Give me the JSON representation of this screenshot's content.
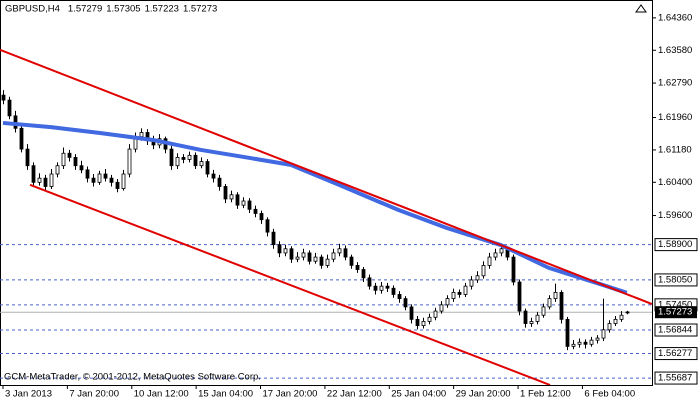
{
  "chart_data": {
    "type": "candlestick",
    "symbol": "GBPUSD,H4",
    "footer": "GCM-MetaTrader, © 2001-2012, MetaQuotes Software Corp.",
    "ylim": [
      1.5552,
      1.6479
    ],
    "xlim": [
      -0.5,
      108.2
    ],
    "yticks": [
      {
        "value": 1.6436,
        "label": "1.64360"
      },
      {
        "value": 1.6358,
        "label": "1.63580"
      },
      {
        "value": 1.6279,
        "label": "1.62790"
      },
      {
        "value": 1.6196,
        "label": "1.61960"
      },
      {
        "value": 1.6118,
        "label": "1.61180"
      },
      {
        "value": 1.604,
        "label": "1.60400"
      },
      {
        "value": 1.596,
        "label": "1.59600"
      }
    ],
    "levels": [
      {
        "value": 1.589,
        "label": "1.58900"
      },
      {
        "value": 1.5805,
        "label": "1.58050"
      },
      {
        "value": 1.5745,
        "label": "1.57450"
      },
      {
        "value": 1.56844,
        "label": "1.56844"
      },
      {
        "value": 1.56277,
        "label": "1.56277"
      },
      {
        "value": 1.55687,
        "label": "1.55687"
      }
    ],
    "level_color": "#4a63c8",
    "xticks": [
      {
        "value": 0,
        "label": "3 Jan 2013"
      },
      {
        "value": 10.73,
        "label": "7 Jan 20:00"
      },
      {
        "value": 21.47,
        "label": "10 Jan 12:00"
      },
      {
        "value": 32.2,
        "label": "15 Jan 04:00"
      },
      {
        "value": 42.93,
        "label": "17 Jan 20:00"
      },
      {
        "value": 53.67,
        "label": "22 Jan 12:00"
      },
      {
        "value": 64.4,
        "label": "25 Jan 04:00"
      },
      {
        "value": 75.13,
        "label": "29 Jan 20:00"
      },
      {
        "value": 85.87,
        "label": "1 Feb 12:00"
      },
      {
        "value": 96.6,
        "label": "6 Feb 04:00"
      }
    ],
    "up_color": "#ffffff",
    "down_color": "#000000",
    "candles": [
      [
        1.625,
        1.6262,
        1.6228,
        1.6238
      ],
      [
        1.6238,
        1.6246,
        1.6192,
        1.62
      ],
      [
        1.62,
        1.6212,
        1.616,
        1.617
      ],
      [
        1.617,
        1.6178,
        1.6112,
        1.612
      ],
      [
        1.612,
        1.6132,
        1.607,
        1.608
      ],
      [
        1.608,
        1.6088,
        1.603,
        1.604
      ],
      [
        1.604,
        1.6062,
        1.6032,
        1.605
      ],
      [
        1.605,
        1.6058,
        1.602,
        1.603
      ],
      [
        1.603,
        1.6072,
        1.6024,
        1.606
      ],
      [
        1.606,
        1.6088,
        1.6052,
        1.608
      ],
      [
        1.608,
        1.6124,
        1.6072,
        1.611
      ],
      [
        1.611,
        1.6118,
        1.609,
        1.61
      ],
      [
        1.61,
        1.6108,
        1.607,
        1.608
      ],
      [
        1.608,
        1.6092,
        1.6062,
        1.607
      ],
      [
        1.607,
        1.6078,
        1.604,
        1.605
      ],
      [
        1.605,
        1.606,
        1.603,
        1.604
      ],
      [
        1.604,
        1.6068,
        1.6034,
        1.606
      ],
      [
        1.606,
        1.6072,
        1.6042,
        1.605
      ],
      [
        1.605,
        1.6058,
        1.603,
        1.604
      ],
      [
        1.604,
        1.6048,
        1.6016,
        1.6025
      ],
      [
        1.6025,
        1.607,
        1.602,
        1.606
      ],
      [
        1.606,
        1.6132,
        1.6052,
        1.612
      ],
      [
        1.612,
        1.616,
        1.6112,
        1.615
      ],
      [
        1.615,
        1.617,
        1.614,
        1.616
      ],
      [
        1.616,
        1.6168,
        1.613,
        1.614
      ],
      [
        1.614,
        1.6152,
        1.612,
        1.613
      ],
      [
        1.613,
        1.6156,
        1.6122,
        1.6145
      ],
      [
        1.6145,
        1.615,
        1.611,
        1.612
      ],
      [
        1.612,
        1.6128,
        1.607,
        1.608
      ],
      [
        1.608,
        1.611,
        1.6072,
        1.61
      ],
      [
        1.61,
        1.6108,
        1.6086,
        1.6095
      ],
      [
        1.6095,
        1.6114,
        1.6088,
        1.6105
      ],
      [
        1.6105,
        1.6112,
        1.6072,
        1.608
      ],
      [
        1.608,
        1.61,
        1.6074,
        1.609
      ],
      [
        1.609,
        1.6096,
        1.6052,
        1.606
      ],
      [
        1.606,
        1.607,
        1.604,
        1.605
      ],
      [
        1.605,
        1.6058,
        1.602,
        1.603
      ],
      [
        1.603,
        1.6036,
        1.599,
        1.6
      ],
      [
        1.6,
        1.602,
        1.5992,
        1.601
      ],
      [
        1.601,
        1.6016,
        1.5976,
        1.5985
      ],
      [
        1.5985,
        1.6004,
        1.5978,
        1.5995
      ],
      [
        1.5995,
        1.6002,
        1.5966,
        1.5975
      ],
      [
        1.5975,
        1.5984,
        1.5956,
        1.5965
      ],
      [
        1.5965,
        1.5972,
        1.594,
        1.595
      ],
      [
        1.595,
        1.5956,
        1.591,
        1.592
      ],
      [
        1.592,
        1.5928,
        1.588,
        1.589
      ],
      [
        1.589,
        1.5898,
        1.586,
        1.587
      ],
      [
        1.587,
        1.589,
        1.5862,
        1.588
      ],
      [
        1.588,
        1.5886,
        1.5846,
        1.5855
      ],
      [
        1.5855,
        1.5872,
        1.5848,
        1.586
      ],
      [
        1.586,
        1.588,
        1.5852,
        1.587
      ],
      [
        1.587,
        1.5876,
        1.5842,
        1.585
      ],
      [
        1.585,
        1.587,
        1.5844,
        1.586
      ],
      [
        1.586,
        1.5866,
        1.5832,
        1.584
      ],
      [
        1.584,
        1.5866,
        1.5834,
        1.5855
      ],
      [
        1.5855,
        1.588,
        1.5848,
        1.587
      ],
      [
        1.587,
        1.5892,
        1.5862,
        1.588
      ],
      [
        1.588,
        1.5888,
        1.5852,
        1.586
      ],
      [
        1.586,
        1.5866,
        1.5832,
        1.584
      ],
      [
        1.584,
        1.5848,
        1.5822,
        1.583
      ],
      [
        1.583,
        1.5836,
        1.58,
        1.581
      ],
      [
        1.581,
        1.5818,
        1.5782,
        1.579
      ],
      [
        1.579,
        1.5798,
        1.577,
        1.578
      ],
      [
        1.578,
        1.58,
        1.5772,
        1.579
      ],
      [
        1.579,
        1.5798,
        1.5776,
        1.5785
      ],
      [
        1.5785,
        1.5792,
        1.5762,
        1.577
      ],
      [
        1.577,
        1.5778,
        1.575,
        1.576
      ],
      [
        1.576,
        1.5766,
        1.5732,
        1.574
      ],
      [
        1.574,
        1.5746,
        1.57,
        1.571
      ],
      [
        1.571,
        1.5718,
        1.5686,
        1.5695
      ],
      [
        1.5695,
        1.5714,
        1.5688,
        1.5705
      ],
      [
        1.5705,
        1.5724,
        1.5698,
        1.5715
      ],
      [
        1.5715,
        1.5738,
        1.5708,
        1.573
      ],
      [
        1.573,
        1.5754,
        1.5724,
        1.5745
      ],
      [
        1.5745,
        1.5768,
        1.5738,
        1.576
      ],
      [
        1.576,
        1.5784,
        1.5752,
        1.5775
      ],
      [
        1.5775,
        1.5782,
        1.5762,
        1.577
      ],
      [
        1.577,
        1.5798,
        1.5764,
        1.579
      ],
      [
        1.579,
        1.5814,
        1.5782,
        1.5805
      ],
      [
        1.5805,
        1.5826,
        1.5798,
        1.5815
      ],
      [
        1.5815,
        1.585,
        1.5808,
        1.584
      ],
      [
        1.584,
        1.587,
        1.5832,
        1.586
      ],
      [
        1.586,
        1.588,
        1.5852,
        1.587
      ],
      [
        1.587,
        1.589,
        1.5862,
        1.588
      ],
      [
        1.588,
        1.5886,
        1.5852,
        1.586
      ],
      [
        1.586,
        1.5866,
        1.5792,
        1.58
      ],
      [
        1.58,
        1.5806,
        1.572,
        1.573
      ],
      [
        1.573,
        1.5736,
        1.569,
        1.57
      ],
      [
        1.57,
        1.5714,
        1.5692,
        1.5705
      ],
      [
        1.5705,
        1.5728,
        1.5698,
        1.572
      ],
      [
        1.572,
        1.5748,
        1.5714,
        1.574
      ],
      [
        1.574,
        1.5768,
        1.5734,
        1.576
      ],
      [
        1.576,
        1.5796,
        1.5752,
        1.5775
      ],
      [
        1.5775,
        1.578,
        1.57,
        1.571
      ],
      [
        1.571,
        1.5716,
        1.5636,
        1.5645
      ],
      [
        1.5645,
        1.566,
        1.5638,
        1.565
      ],
      [
        1.565,
        1.5664,
        1.5642,
        1.5655
      ],
      [
        1.5655,
        1.5662,
        1.564,
        1.565
      ],
      [
        1.565,
        1.5668,
        1.5644,
        1.566
      ],
      [
        1.566,
        1.5672,
        1.5652,
        1.5665
      ],
      [
        1.5665,
        1.576,
        1.5658,
        1.5685
      ],
      [
        1.5685,
        1.5708,
        1.5678,
        1.57
      ],
      [
        1.57,
        1.5718,
        1.5694,
        1.571
      ],
      [
        1.571,
        1.573,
        1.5704,
        1.572
      ],
      [
        1.57279,
        1.57305,
        1.57223,
        1.57273
      ]
    ],
    "ma": {
      "color": "#4169e1",
      "x": [
        0,
        8,
        16,
        25,
        33,
        41,
        48,
        56,
        66,
        74,
        83,
        91,
        100,
        104
      ],
      "values": [
        1.6183,
        1.6173,
        1.6159,
        1.6142,
        1.6118,
        1.6099,
        1.6082,
        1.6034,
        1.5973,
        1.593,
        1.5889,
        1.5834,
        1.5793,
        1.5774
      ]
    },
    "channel": {
      "color": "#e00000",
      "lines": [
        {
          "x": [
            -0.5,
            108.2
          ],
          "values": [
            1.6359,
            1.5747
          ]
        },
        {
          "x": [
            4.5,
            91.2
          ],
          "values": [
            1.6034,
            1.5552
          ]
        }
      ]
    }
  }
}
